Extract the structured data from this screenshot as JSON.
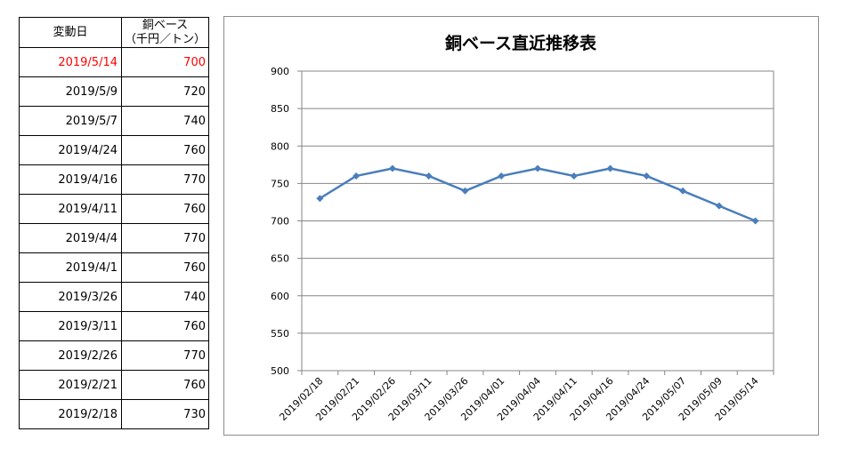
{
  "table": {
    "header_date": "変動日",
    "header_price_line1": "銅ベース",
    "header_price_line2": "（千円／トン）",
    "rows": [
      {
        "date": "2019/5/14",
        "price": "700"
      },
      {
        "date": "2019/5/9",
        "price": "720"
      },
      {
        "date": "2019/5/7",
        "price": "740"
      },
      {
        "date": "2019/4/24",
        "price": "760"
      },
      {
        "date": "2019/4/16",
        "price": "770"
      },
      {
        "date": "2019/4/11",
        "price": "760"
      },
      {
        "date": "2019/4/4",
        "price": "770"
      },
      {
        "date": "2019/4/1",
        "price": "760"
      },
      {
        "date": "2019/3/26",
        "price": "740"
      },
      {
        "date": "2019/3/11",
        "price": "760"
      },
      {
        "date": "2019/2/26",
        "price": "770"
      },
      {
        "date": "2019/2/21",
        "price": "760"
      },
      {
        "date": "2019/2/18",
        "price": "730"
      }
    ],
    "latest_color": "#ff0000"
  },
  "chart_data": {
    "type": "line",
    "title": "銅ベース直近推移表",
    "xlabel": "",
    "ylabel": "",
    "categories": [
      "2019/02/18",
      "2019/02/21",
      "2019/02/26",
      "2019/03/11",
      "2019/03/26",
      "2019/04/01",
      "2019/04/04",
      "2019/04/11",
      "2019/04/16",
      "2019/04/24",
      "2019/05/07",
      "2019/05/09",
      "2019/05/14"
    ],
    "series": [
      {
        "values": [
          730,
          760,
          770,
          760,
          740,
          760,
          770,
          760,
          770,
          760,
          740,
          720,
          700
        ]
      }
    ],
    "ylim": [
      500,
      900
    ],
    "yticks": [
      500,
      550,
      600,
      650,
      700,
      750,
      800,
      850,
      900
    ],
    "grid": true,
    "legend": "none",
    "line_color": "#4a7ebb",
    "grid_color": "#868686"
  }
}
